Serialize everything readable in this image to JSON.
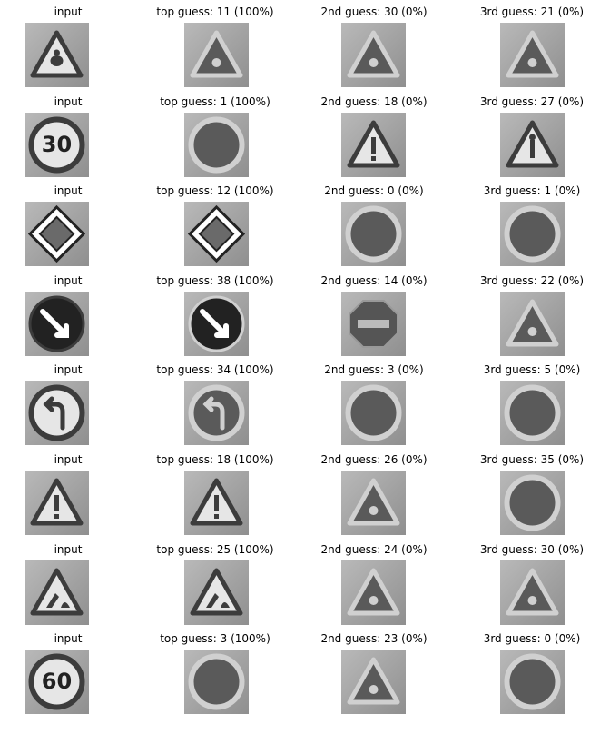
{
  "figure": {
    "rows": [
      {
        "cells": [
          {
            "title": "input",
            "icon": "animal-crossing-sign-icon",
            "tone": "light"
          },
          {
            "title": "top guess: 11 (100%)",
            "icon": "warning-triangle-sign-icon",
            "tone": "dark"
          },
          {
            "title": "2nd guess: 30 (0%)",
            "icon": "warning-triangle-sign-icon",
            "tone": "dark"
          },
          {
            "title": "3rd guess: 21 (0%)",
            "icon": "warning-triangle-sign-icon",
            "tone": "dark"
          }
        ]
      },
      {
        "cells": [
          {
            "title": "input",
            "icon": "speed-limit-30-sign-icon",
            "tone": "light",
            "label": "30"
          },
          {
            "title": "top guess: 1 (100%)",
            "icon": "speed-limit-sign-icon",
            "tone": "dark"
          },
          {
            "title": "2nd guess: 18 (0%)",
            "icon": "exclamation-warning-sign-icon",
            "tone": "medium"
          },
          {
            "title": "3rd guess: 27 (0%)",
            "icon": "pedestrian-warning-sign-icon",
            "tone": "light"
          }
        ]
      },
      {
        "cells": [
          {
            "title": "input",
            "icon": "priority-road-sign-icon",
            "tone": "white"
          },
          {
            "title": "top guess: 12 (100%)",
            "icon": "priority-road-sign-icon",
            "tone": "medium"
          },
          {
            "title": "2nd guess: 0 (0%)",
            "icon": "speed-limit-sign-icon",
            "tone": "dark"
          },
          {
            "title": "3rd guess: 1 (0%)",
            "icon": "speed-limit-sign-icon",
            "tone": "dark"
          }
        ]
      },
      {
        "cells": [
          {
            "title": "input",
            "icon": "keep-right-sign-icon",
            "tone": "white"
          },
          {
            "title": "top guess: 38 (100%)",
            "icon": "keep-right-sign-icon",
            "tone": "dark"
          },
          {
            "title": "2nd guess: 14 (0%)",
            "icon": "stop-sign-icon",
            "tone": "dark"
          },
          {
            "title": "3rd guess: 22 (0%)",
            "icon": "warning-triangle-sign-icon",
            "tone": "dark"
          }
        ]
      },
      {
        "cells": [
          {
            "title": "input",
            "icon": "turn-left-sign-icon",
            "tone": "light"
          },
          {
            "title": "top guess: 34 (100%)",
            "icon": "turn-left-sign-icon",
            "tone": "dark"
          },
          {
            "title": "2nd guess: 3 (0%)",
            "icon": "round-sign-icon",
            "tone": "dark"
          },
          {
            "title": "3rd guess: 5 (0%)",
            "icon": "round-sign-icon",
            "tone": "dark"
          }
        ]
      },
      {
        "cells": [
          {
            "title": "input",
            "icon": "exclamation-warning-sign-icon",
            "tone": "medium"
          },
          {
            "title": "top guess: 18 (100%)",
            "icon": "exclamation-warning-sign-icon",
            "tone": "medium"
          },
          {
            "title": "2nd guess: 26 (0%)",
            "icon": "warning-triangle-sign-icon",
            "tone": "dark"
          },
          {
            "title": "3rd guess: 35 (0%)",
            "icon": "round-sign-icon",
            "tone": "dark"
          }
        ]
      },
      {
        "cells": [
          {
            "title": "input",
            "icon": "road-work-sign-icon",
            "tone": "medium"
          },
          {
            "title": "top guess: 25 (100%)",
            "icon": "road-work-sign-icon",
            "tone": "light"
          },
          {
            "title": "2nd guess: 24 (0%)",
            "icon": "warning-triangle-sign-icon",
            "tone": "dark"
          },
          {
            "title": "3rd guess: 30 (0%)",
            "icon": "warning-triangle-sign-icon",
            "tone": "dark"
          }
        ]
      },
      {
        "cells": [
          {
            "title": "input",
            "icon": "speed-limit-60-sign-icon",
            "tone": "light",
            "label": "60"
          },
          {
            "title": "top guess: 3 (100%)",
            "icon": "round-sign-icon",
            "tone": "dark"
          },
          {
            "title": "2nd guess: 23 (0%)",
            "icon": "warning-triangle-sign-icon",
            "tone": "dark"
          },
          {
            "title": "3rd guess: 0 (0%)",
            "icon": "speed-limit-sign-icon",
            "tone": "dark"
          }
        ]
      }
    ]
  }
}
